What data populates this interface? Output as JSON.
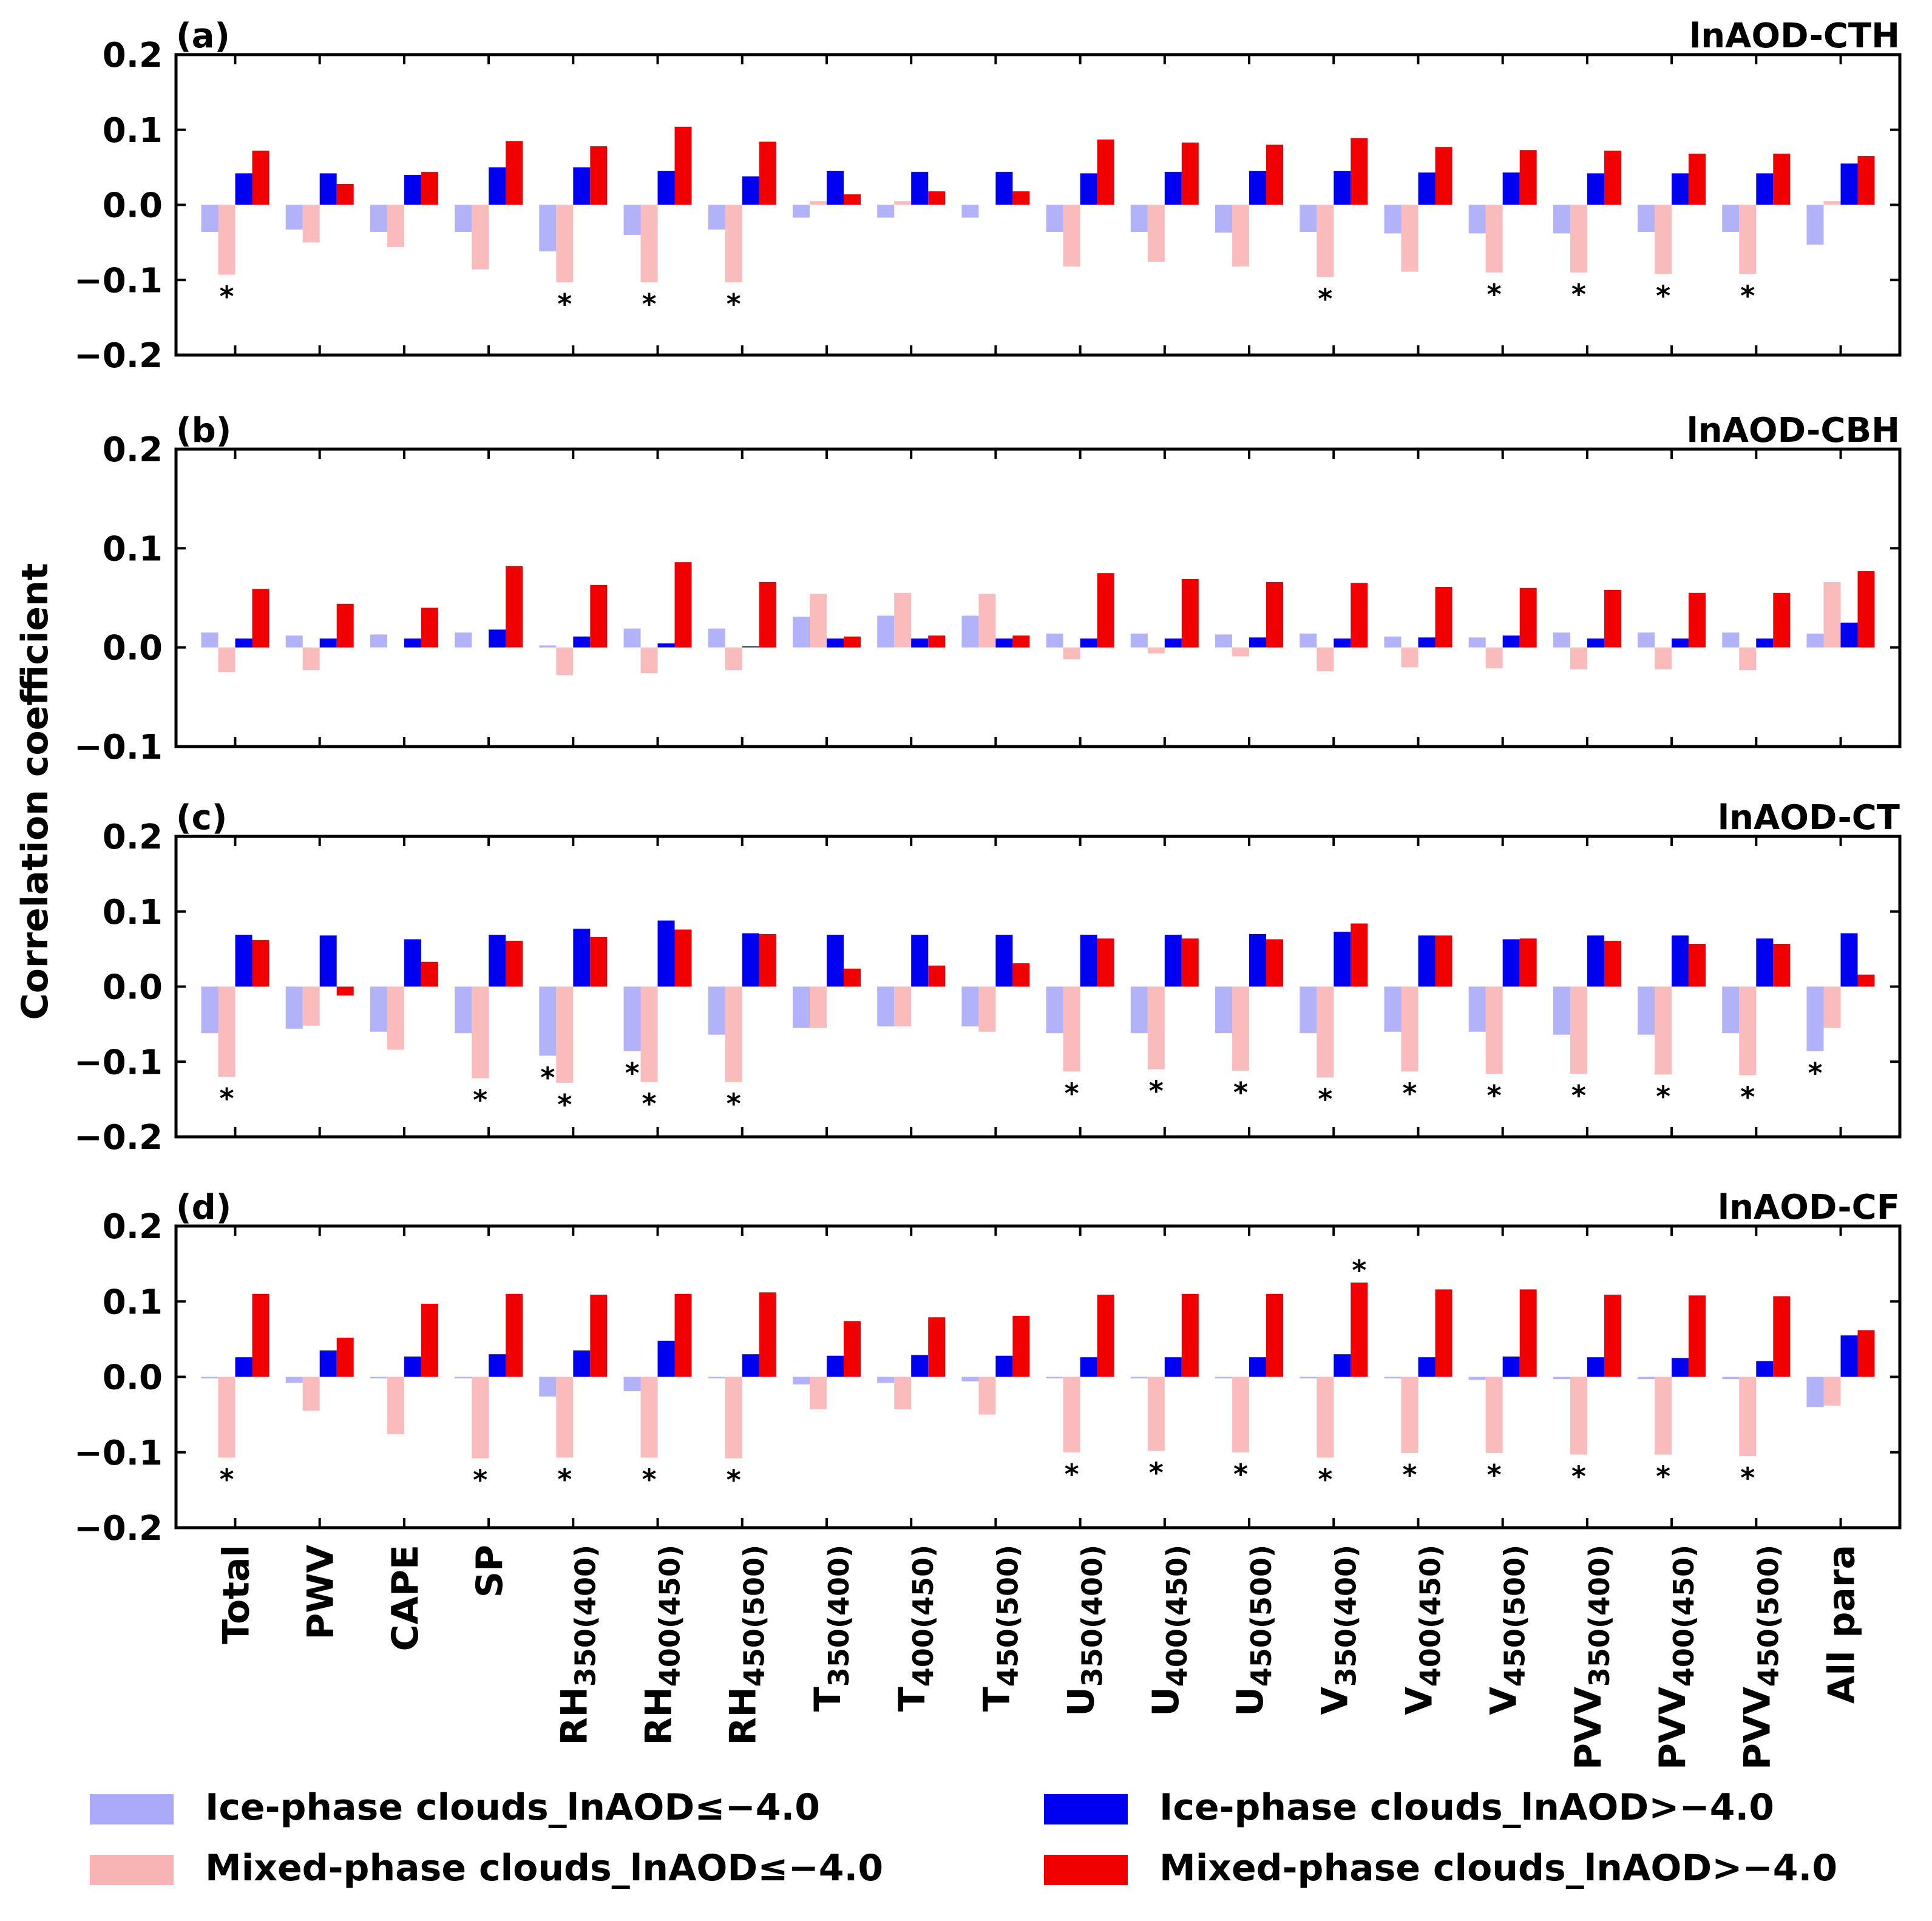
{
  "figure": {
    "ylabel": "Correlation coefficient",
    "categories": [
      "Total",
      "PWV",
      "CAPE",
      "SP",
      {
        "base": "RH",
        "sub": "350(400)"
      },
      {
        "base": "RH",
        "sub": "400(450)"
      },
      {
        "base": "RH",
        "sub": "450(500)"
      },
      {
        "base": "T",
        "sub": "350(400)"
      },
      {
        "base": "T",
        "sub": "400(450)"
      },
      {
        "base": "T",
        "sub": "450(500)"
      },
      {
        "base": "U",
        "sub": "350(400)"
      },
      {
        "base": "U",
        "sub": "400(450)"
      },
      {
        "base": "U",
        "sub": "450(500)"
      },
      {
        "base": "V",
        "sub": "350(400)"
      },
      {
        "base": "V",
        "sub": "400(450)"
      },
      {
        "base": "V",
        "sub": "450(500)"
      },
      {
        "base": "PVV",
        "sub": "350(400)"
      },
      {
        "base": "PVV",
        "sub": "400(450)"
      },
      {
        "base": "PVV",
        "sub": "450(500)"
      },
      "All para"
    ],
    "significance_marker": "*",
    "series_colors": [
      "#aaaaf8",
      "#f8b4b4",
      "#0000f0",
      "#f00000"
    ],
    "legend": [
      {
        "label": "Ice-phase clouds_lnAOD≤−4.0",
        "color": "#aaaaf8"
      },
      {
        "label": "Ice-phase clouds_lnAOD>−4.0",
        "color": "#0000f0"
      },
      {
        "label": "Mixed-phase clouds_lnAOD≤−4.0",
        "color": "#f8b4b4"
      },
      {
        "label": "Mixed-phase clouds_lnAOD>−4.0",
        "color": "#f00000"
      }
    ]
  },
  "chart_data": [
    {
      "type": "bar",
      "panel_label": "(a)",
      "title": "lnAOD-CTH",
      "ylim": [
        -0.2,
        0.2
      ],
      "yticks": [
        -0.2,
        -0.1,
        0.0,
        0.1,
        0.2
      ],
      "ytick_labels": [
        "−0.2",
        "−0.1",
        "0.0",
        "0.1",
        "0.2"
      ],
      "series": [
        {
          "name": "Ice-phase clouds_lnAOD≤−4.0",
          "values": [
            -0.036,
            -0.033,
            -0.036,
            -0.036,
            -0.062,
            -0.04,
            -0.033,
            -0.017,
            -0.017,
            -0.017,
            -0.036,
            -0.036,
            -0.037,
            -0.036,
            -0.038,
            -0.038,
            -0.038,
            -0.036,
            -0.036,
            -0.053
          ]
        },
        {
          "name": "Mixed-phase clouds_lnAOD≤−4.0",
          "values": [
            -0.093,
            -0.05,
            -0.056,
            -0.086,
            -0.103,
            -0.103,
            -0.103,
            0.005,
            0.005,
            0.0,
            -0.082,
            -0.076,
            -0.082,
            -0.096,
            -0.089,
            -0.09,
            -0.09,
            -0.092,
            -0.092,
            0.005
          ]
        },
        {
          "name": "Ice-phase clouds_lnAOD>−4.0",
          "values": [
            0.042,
            0.042,
            0.04,
            0.05,
            0.05,
            0.045,
            0.038,
            0.045,
            0.044,
            0.044,
            0.042,
            0.044,
            0.045,
            0.045,
            0.043,
            0.043,
            0.042,
            0.042,
            0.042,
            0.055
          ]
        },
        {
          "name": "Mixed-phase clouds_lnAOD>−4.0",
          "values": [
            0.072,
            0.028,
            0.044,
            0.085,
            0.078,
            0.104,
            0.084,
            0.014,
            0.018,
            0.018,
            0.087,
            0.083,
            0.08,
            0.089,
            0.077,
            0.073,
            0.072,
            0.068,
            0.068,
            0.065
          ]
        }
      ],
      "significant": [
        [],
        [
          0,
          4,
          5,
          6,
          13,
          15,
          16,
          17,
          18
        ],
        [],
        []
      ]
    },
    {
      "type": "bar",
      "panel_label": "(b)",
      "title": "lnAOD-CBH",
      "ylim": [
        -0.1,
        0.2
      ],
      "yticks": [
        -0.1,
        0.0,
        0.1,
        0.2
      ],
      "ytick_labels": [
        "−0.1",
        "0.0",
        "0.1",
        "0.2"
      ],
      "series": [
        {
          "name": "Ice-phase clouds_lnAOD≤−4.0",
          "values": [
            0.015,
            0.012,
            0.013,
            0.015,
            0.002,
            0.019,
            0.019,
            0.031,
            0.032,
            0.032,
            0.014,
            0.014,
            0.013,
            0.014,
            0.011,
            0.01,
            0.015,
            0.015,
            0.015,
            0.014
          ]
        },
        {
          "name": "Mixed-phase clouds_lnAOD≤−4.0",
          "values": [
            -0.025,
            -0.023,
            0.0,
            0.0,
            -0.028,
            -0.026,
            -0.023,
            0.054,
            0.055,
            0.054,
            -0.012,
            -0.006,
            -0.009,
            -0.024,
            -0.02,
            -0.021,
            -0.022,
            -0.022,
            -0.023,
            0.066
          ]
        },
        {
          "name": "Ice-phase clouds_lnAOD>−4.0",
          "values": [
            0.009,
            0.009,
            0.009,
            0.018,
            0.011,
            0.004,
            0.001,
            0.009,
            0.009,
            0.009,
            0.009,
            0.009,
            0.01,
            0.009,
            0.01,
            0.012,
            0.009,
            0.009,
            0.009,
            0.025
          ]
        },
        {
          "name": "Mixed-phase clouds_lnAOD>−4.0",
          "values": [
            0.059,
            0.044,
            0.04,
            0.082,
            0.063,
            0.086,
            0.066,
            0.011,
            0.012,
            0.012,
            0.075,
            0.069,
            0.066,
            0.065,
            0.061,
            0.06,
            0.058,
            0.055,
            0.055,
            0.077
          ]
        }
      ],
      "significant": [
        [],
        [],
        [],
        []
      ]
    },
    {
      "type": "bar",
      "panel_label": "(c)",
      "title": "lnAOD-CT",
      "ylim": [
        -0.2,
        0.2
      ],
      "yticks": [
        -0.2,
        -0.1,
        0.0,
        0.1,
        0.2
      ],
      "ytick_labels": [
        "−0.2",
        "−0.1",
        "0.0",
        "0.1",
        "0.2"
      ],
      "series": [
        {
          "name": "Ice-phase clouds_lnAOD≤−4.0",
          "values": [
            -0.062,
            -0.056,
            -0.06,
            -0.062,
            -0.092,
            -0.086,
            -0.064,
            -0.055,
            -0.053,
            -0.053,
            -0.062,
            -0.062,
            -0.062,
            -0.062,
            -0.06,
            -0.06,
            -0.064,
            -0.064,
            -0.062,
            -0.086
          ]
        },
        {
          "name": "Mixed-phase clouds_lnAOD≤−4.0",
          "values": [
            -0.12,
            -0.052,
            -0.084,
            -0.122,
            -0.128,
            -0.127,
            -0.127,
            -0.055,
            -0.053,
            -0.06,
            -0.113,
            -0.11,
            -0.112,
            -0.121,
            -0.113,
            -0.116,
            -0.116,
            -0.117,
            -0.118,
            -0.055
          ]
        },
        {
          "name": "Ice-phase clouds_lnAOD>−4.0",
          "values": [
            0.069,
            0.068,
            0.063,
            0.069,
            0.077,
            0.088,
            0.071,
            0.069,
            0.069,
            0.069,
            0.069,
            0.069,
            0.07,
            0.073,
            0.068,
            0.063,
            0.068,
            0.068,
            0.064,
            0.071
          ]
        },
        {
          "name": "Mixed-phase clouds_lnAOD>−4.0",
          "values": [
            0.062,
            -0.012,
            0.033,
            0.061,
            0.066,
            0.076,
            0.07,
            0.024,
            0.028,
            0.031,
            0.064,
            0.064,
            0.063,
            0.084,
            0.068,
            0.064,
            0.061,
            0.057,
            0.057,
            0.016
          ]
        }
      ],
      "significant": [
        [
          4,
          5,
          19
        ],
        [
          0,
          3,
          4,
          5,
          6,
          10,
          11,
          12,
          13,
          14,
          15,
          16,
          17,
          18
        ],
        [],
        []
      ]
    },
    {
      "type": "bar",
      "panel_label": "(d)",
      "title": "lnAOD-CF",
      "ylim": [
        -0.2,
        0.2
      ],
      "yticks": [
        -0.2,
        -0.1,
        0.0,
        0.1,
        0.2
      ],
      "ytick_labels": [
        "−0.2",
        "−0.1",
        "0.0",
        "0.1",
        "0.2"
      ],
      "series": [
        {
          "name": "Ice-phase clouds_lnAOD≤−4.0",
          "values": [
            -0.002,
            -0.008,
            -0.002,
            -0.002,
            -0.026,
            -0.019,
            -0.002,
            -0.01,
            -0.008,
            -0.006,
            -0.002,
            -0.002,
            -0.002,
            -0.002,
            -0.002,
            -0.004,
            -0.003,
            -0.003,
            -0.003,
            -0.04
          ]
        },
        {
          "name": "Mixed-phase clouds_lnAOD≤−4.0",
          "values": [
            -0.107,
            -0.045,
            -0.076,
            -0.108,
            -0.107,
            -0.107,
            -0.108,
            -0.043,
            -0.043,
            -0.05,
            -0.1,
            -0.098,
            -0.1,
            -0.107,
            -0.101,
            -0.101,
            -0.103,
            -0.103,
            -0.105,
            -0.038
          ]
        },
        {
          "name": "Ice-phase clouds_lnAOD>−4.0",
          "values": [
            0.026,
            0.035,
            0.027,
            0.03,
            0.035,
            0.048,
            0.03,
            0.028,
            0.029,
            0.028,
            0.026,
            0.026,
            0.026,
            0.03,
            0.026,
            0.027,
            0.026,
            0.025,
            0.021,
            0.055
          ]
        },
        {
          "name": "Mixed-phase clouds_lnAOD>−4.0",
          "values": [
            0.11,
            0.052,
            0.097,
            0.11,
            0.109,
            0.11,
            0.112,
            0.074,
            0.079,
            0.081,
            0.109,
            0.11,
            0.11,
            0.125,
            0.116,
            0.116,
            0.109,
            0.108,
            0.107,
            0.062
          ]
        }
      ],
      "significant": [
        [],
        [
          0,
          3,
          4,
          5,
          6,
          10,
          11,
          12,
          13,
          14,
          15,
          16,
          17,
          18
        ],
        [],
        [
          13
        ]
      ]
    }
  ]
}
